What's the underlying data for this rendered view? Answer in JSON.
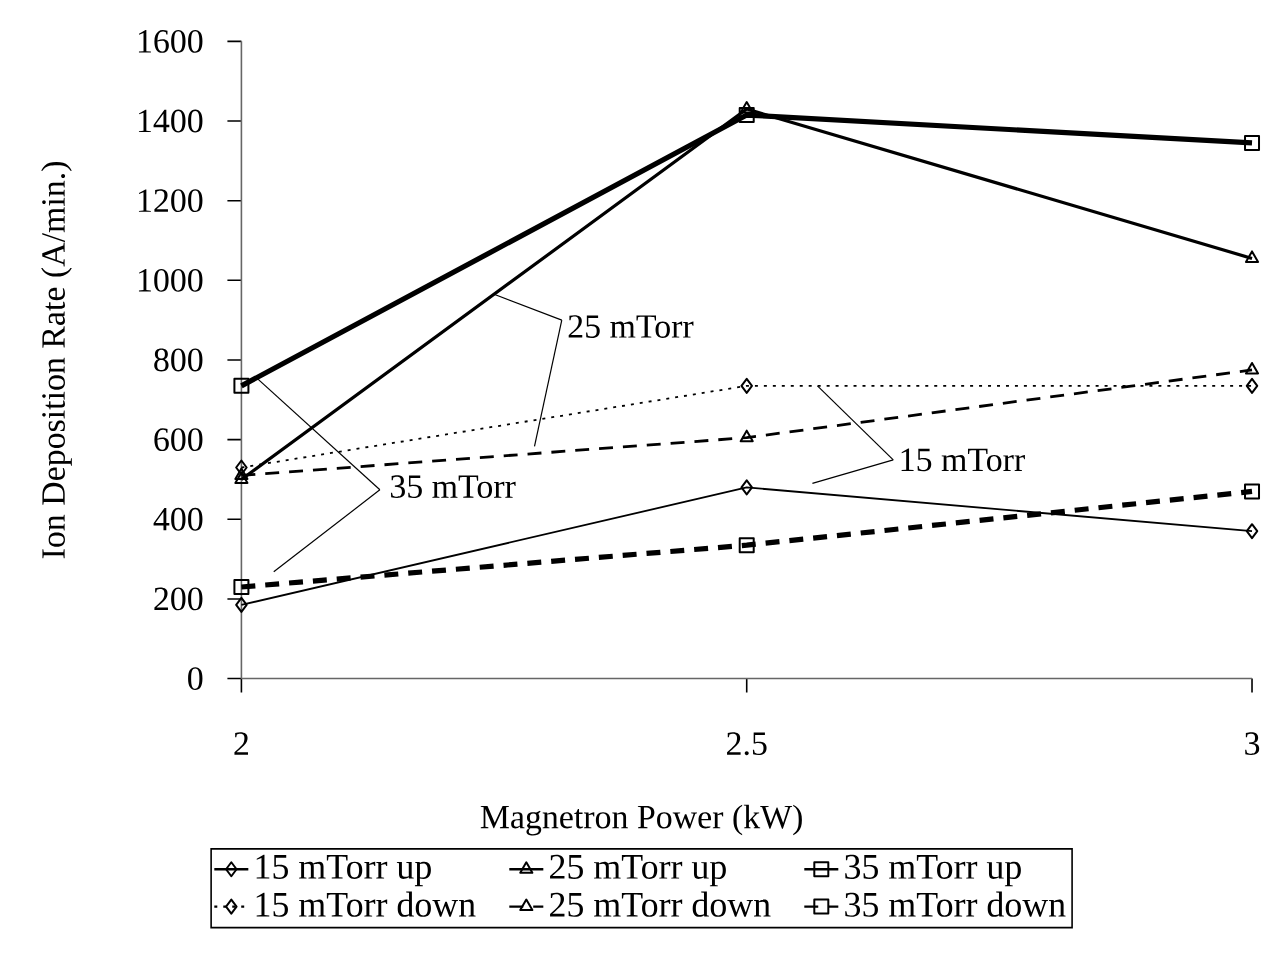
{
  "chart_data": {
    "type": "line",
    "xlabel": "Magnetron Power (kW)",
    "ylabel": "Ion Deposition Rate (A/min.)",
    "x": [
      2,
      2.5,
      3
    ],
    "xlim": [
      2,
      3
    ],
    "xticks": [
      2,
      2.5,
      3
    ],
    "ylim": [
      0,
      1600
    ],
    "yticks": [
      0,
      200,
      400,
      600,
      800,
      1000,
      1200,
      1400,
      1600
    ],
    "grid": false,
    "legend": "bottom",
    "series": [
      {
        "name": "15 mTorr up",
        "color": "#000000",
        "marker": "diamond",
        "line_style": "solid",
        "values": [
          185,
          480,
          370
        ]
      },
      {
        "name": "25 mTorr up",
        "color": "#000000",
        "marker": "triangle",
        "line_style": "solid",
        "values": [
          500,
          1430,
          1055
        ]
      },
      {
        "name": "35 mTorr up",
        "color": "#000000",
        "marker": "square",
        "line_style": "solid",
        "values": [
          735,
          1415,
          1345
        ]
      },
      {
        "name": "15 mTorr down",
        "color": "#000000",
        "marker": "diamond",
        "line_style": "dotted",
        "values": [
          530,
          735,
          735
        ]
      },
      {
        "name": "25 mTorr down",
        "color": "#000000",
        "marker": "triangle",
        "line_style": "dashed",
        "values": [
          510,
          605,
          775
        ]
      },
      {
        "name": "35 mTorr down",
        "color": "#000000",
        "marker": "square",
        "line_style": "dashed",
        "values": [
          230,
          335,
          470
        ]
      }
    ],
    "annotations": [
      {
        "text": "25 mTorr",
        "x": 2.25,
        "y": 965
      },
      {
        "text": "35 mTorr",
        "x": 2.015,
        "y": 755
      },
      {
        "text": "15 mTorr",
        "x": 2.57,
        "y": 735
      }
    ]
  }
}
